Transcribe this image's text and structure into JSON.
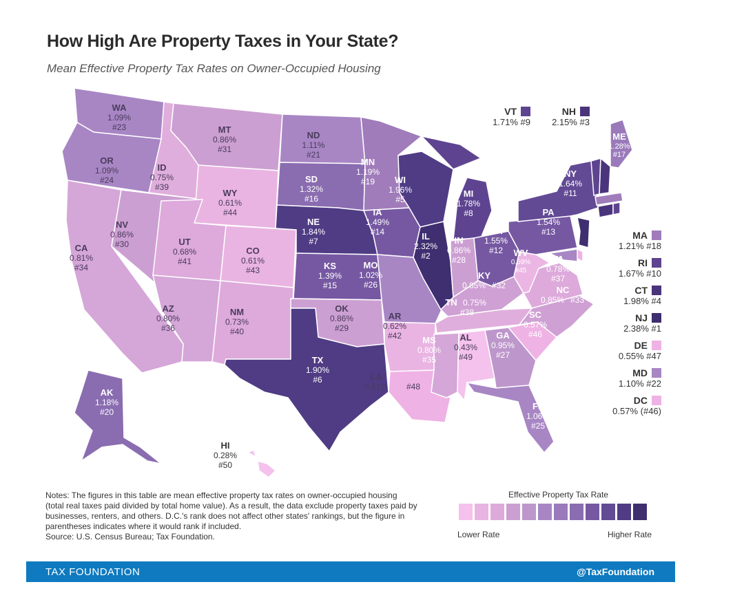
{
  "title": "How High Are Property Taxes in Your State?",
  "subtitle": "Mean Effective Property Tax Rates on Owner-Occupied Housing",
  "states": [
    {
      "abbr": "WA",
      "rate": "1.09%",
      "rank": "#23"
    },
    {
      "abbr": "OR",
      "rate": "1.09%",
      "rank": "#24"
    },
    {
      "abbr": "CA",
      "rate": "0.81%",
      "rank": "#34"
    },
    {
      "abbr": "ID",
      "rate": "0.75%",
      "rank": "#39"
    },
    {
      "abbr": "NV",
      "rate": "0.86%",
      "rank": "#30"
    },
    {
      "abbr": "MT",
      "rate": "0.86%",
      "rank": "#31"
    },
    {
      "abbr": "WY",
      "rate": "0.61%",
      "rank": "#44"
    },
    {
      "abbr": "UT",
      "rate": "0.68%",
      "rank": "#41"
    },
    {
      "abbr": "AZ",
      "rate": "0.80%",
      "rank": "#36"
    },
    {
      "abbr": "CO",
      "rate": "0.61%",
      "rank": "#43"
    },
    {
      "abbr": "NM",
      "rate": "0.73%",
      "rank": "#40"
    },
    {
      "abbr": "ND",
      "rate": "1.11%",
      "rank": "#21"
    },
    {
      "abbr": "SD",
      "rate": "1.32%",
      "rank": "#16"
    },
    {
      "abbr": "NE",
      "rate": "1.84%",
      "rank": "#7"
    },
    {
      "abbr": "KS",
      "rate": "1.39%",
      "rank": "#15"
    },
    {
      "abbr": "OK",
      "rate": "0.86%",
      "rank": "#29"
    },
    {
      "abbr": "TX",
      "rate": "1.90%",
      "rank": "#6"
    },
    {
      "abbr": "MN",
      "rate": "1.19%",
      "rank": "#19"
    },
    {
      "abbr": "IA",
      "rate": "1.49%",
      "rank": "#14"
    },
    {
      "abbr": "MO",
      "rate": "1.02%",
      "rank": "#26"
    },
    {
      "abbr": "AR",
      "rate": "0.62%",
      "rank": "#42"
    },
    {
      "abbr": "LA",
      "rate": "0.51%",
      "rank": "#48"
    },
    {
      "abbr": "WI",
      "rate": "1.96%",
      "rank": "#5"
    },
    {
      "abbr": "IL",
      "rate": "2.32%",
      "rank": "#2"
    },
    {
      "abbr": "MI",
      "rate": "1.78%",
      "rank": "#8"
    },
    {
      "abbr": "IN",
      "rate": "0.86%",
      "rank": "#28"
    },
    {
      "abbr": "OH",
      "rate": "1.55%",
      "rank": "#12"
    },
    {
      "abbr": "KY",
      "rate": "0.85%",
      "rank": "#32"
    },
    {
      "abbr": "TN",
      "rate": "0.75%",
      "rank": "#38"
    },
    {
      "abbr": "MS",
      "rate": "0.80%",
      "rank": "#35"
    },
    {
      "abbr": "AL",
      "rate": "0.43%",
      "rank": "#49"
    },
    {
      "abbr": "GA",
      "rate": "0.95%",
      "rank": "#27"
    },
    {
      "abbr": "FL",
      "rate": "1.06%",
      "rank": "#25"
    },
    {
      "abbr": "SC",
      "rate": "0.57%",
      "rank": "#46"
    },
    {
      "abbr": "NC",
      "rate": "0.85%",
      "rank": "#33"
    },
    {
      "abbr": "VA",
      "rate": "0.78%",
      "rank": "#37"
    },
    {
      "abbr": "WV",
      "rate": "0.59%",
      "rank": "#45"
    },
    {
      "abbr": "PA",
      "rate": "1.54%",
      "rank": "#13"
    },
    {
      "abbr": "NY",
      "rate": "1.64%",
      "rank": "#11"
    },
    {
      "abbr": "ME",
      "rate": "1.28%",
      "rank": "#17"
    },
    {
      "abbr": "AK",
      "rate": "1.18%",
      "rank": "#20"
    },
    {
      "abbr": "HI",
      "rate": "0.28%",
      "rank": "#50"
    }
  ],
  "side_states": [
    {
      "abbr": "VT",
      "text": "1.71% #9",
      "color": "#5e4490"
    },
    {
      "abbr": "NH",
      "text": "2.15% #3",
      "color": "#4a357c"
    },
    {
      "abbr": "MA",
      "text": "1.21% #18",
      "color": "#a07cbb"
    },
    {
      "abbr": "RI",
      "text": "1.67% #10",
      "color": "#5e4490"
    },
    {
      "abbr": "CT",
      "text": "1.98% #4",
      "color": "#4a357c"
    },
    {
      "abbr": "NJ",
      "text": "2.38% #1",
      "color": "#3f2e70"
    },
    {
      "abbr": "DE",
      "text": "0.55% #47",
      "color": "#efb2e4"
    },
    {
      "abbr": "MD",
      "text": "1.10% #22",
      "color": "#a886c4"
    },
    {
      "abbr": "DC",
      "text": "0.57% (#46)",
      "color": "#efb2e4"
    }
  ],
  "legend": {
    "title": "Effective Property Tax Rate",
    "low": "Lower Rate",
    "high": "Higher Rate",
    "colors": [
      "#f4c2ec",
      "#e9b4e2",
      "#ddaadb",
      "#cc9fd2",
      "#bd96cb",
      "#a886c4",
      "#9a7aba",
      "#8a6cb0",
      "#7658a2",
      "#624a94",
      "#4f3c84",
      "#3f2e70"
    ]
  },
  "notes": "Notes: The figures in this table are mean effective property tax rates on owner-occupied housing (total real taxes paid divided by total home value). As a result, the data exclude property taxes paid by businesses, renters, and others. D.C.'s rank does not affect other states' rankings, but the figure in parentheses indicates where it would rank if included.",
  "source": "Source: U.S. Census Bureau; Tax Foundation.",
  "footer": {
    "brand": "TAX FOUNDATION",
    "handle": "@TaxFoundation"
  },
  "colors": {
    "footer": "#0f7abf",
    "darkest": "#3f2e70",
    "lightest": "#f4c2ec"
  }
}
